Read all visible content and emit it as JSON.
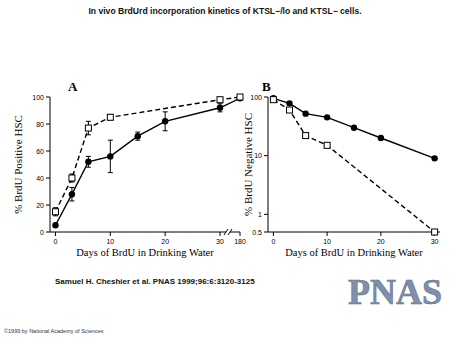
{
  "title": "In vivo BrdUrd incorporation kinetics of KTSL−/lo and KTSL− cells.",
  "citation": "Samuel H. Cheshier et al. PNAS 1999;96:6:3120-3125",
  "logo": "PNAS",
  "copyright": "©1999 by National Academy of Sciences",
  "chart_data": [
    {
      "type": "line",
      "panel": "A",
      "x_label": "Days of BrdU in Drinking Water",
      "y_label": "% BrdU Positive HSC",
      "xlim": [
        -1,
        180
      ],
      "xticks": [
        0,
        10,
        20,
        30,
        180
      ],
      "ylim": [
        0,
        100
      ],
      "yticks": [
        0,
        20,
        40,
        60,
        80,
        100
      ],
      "series": [
        {
          "color": "#000000",
          "marker": "circle",
          "line_style": "solid",
          "x": [
            0,
            3,
            6,
            10,
            15,
            20,
            30,
            180
          ],
          "values": [
            5,
            28,
            52,
            56,
            71,
            82,
            92,
            99
          ],
          "errors": [
            null,
            5,
            4,
            12,
            3,
            7,
            3,
            null
          ]
        },
        {
          "color": "#000000",
          "marker": "square",
          "line_style": "dashed",
          "x": [
            0,
            3,
            6,
            10,
            30,
            180
          ],
          "values": [
            15,
            40,
            77,
            85,
            98,
            100
          ],
          "errors": [
            3,
            3,
            5,
            2,
            null,
            null
          ]
        }
      ]
    },
    {
      "type": "line",
      "panel": "B",
      "log": "y",
      "x_label": "Days of BrdU in Drinking Water",
      "y_label": "% BrdU Negative HSC",
      "xlim": [
        -1,
        31
      ],
      "xticks": [
        0,
        10,
        20,
        30
      ],
      "ylim": [
        0.5,
        100
      ],
      "yticks": [
        0.5,
        1,
        10,
        100
      ],
      "series": [
        {
          "color": "#000000",
          "marker": "circle",
          "line_style": "solid",
          "x": [
            0,
            3,
            6,
            10,
            15,
            20,
            30
          ],
          "values": [
            95,
            78,
            52,
            45,
            30,
            20,
            9
          ]
        },
        {
          "color": "#000000",
          "marker": "square",
          "line_style": "dashed",
          "x": [
            0,
            3,
            6,
            10,
            30
          ],
          "values": [
            90,
            60,
            22,
            15,
            0.5
          ]
        }
      ]
    }
  ]
}
